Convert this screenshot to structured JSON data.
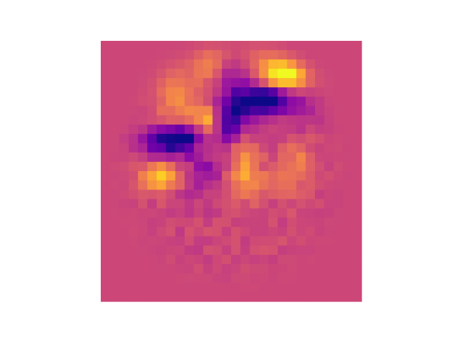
{
  "chart_data": {
    "type": "heatmap",
    "title": "",
    "xlabel": "",
    "ylabel": "",
    "axes_visible": false,
    "colorbar": false,
    "colormap": "plasma",
    "vmin": -1,
    "vmax": 1,
    "rows": 28,
    "cols": 28,
    "background_value": 0,
    "features": [
      {
        "row": 9.1,
        "col": 11.1,
        "sigma_row": 1.4,
        "sigma_col": 1.2,
        "amp": 1.0
      },
      {
        "row": 8.0,
        "col": 10.7,
        "sigma_row": 1.8,
        "sigma_col": 2.3,
        "amp": 0.35
      },
      {
        "row": 3.3,
        "col": 19.4,
        "sigma_row": 1.0,
        "sigma_col": 1.5,
        "amp": 0.9
      },
      {
        "row": 2.3,
        "col": 18.0,
        "sigma_row": 1.8,
        "sigma_col": 3.0,
        "amp": 0.45
      },
      {
        "row": 2.2,
        "col": 11.3,
        "sigma_row": 1.5,
        "sigma_col": 1.4,
        "amp": 0.45
      },
      {
        "row": 5.4,
        "col": 7.5,
        "sigma_row": 2.2,
        "sigma_col": 1.5,
        "amp": 0.35
      },
      {
        "row": 14.1,
        "col": 6.3,
        "sigma_row": 1.2,
        "sigma_col": 1.7,
        "amp": 0.8
      },
      {
        "row": 13.6,
        "col": 14.8,
        "sigma_row": 2.0,
        "sigma_col": 1.2,
        "amp": 0.55
      },
      {
        "row": 11.9,
        "col": 20.7,
        "sigma_row": 2.4,
        "sigma_col": 1.2,
        "amp": 0.35
      },
      {
        "row": 14.8,
        "col": 18.0,
        "sigma_row": 1.0,
        "sigma_col": 1.5,
        "amp": 0.3
      },
      {
        "row": 5.7,
        "col": 17.8,
        "sigma_row": 1.0,
        "sigma_col": 1.6,
        "amp": -1.0
      },
      {
        "row": 6.3,
        "col": 14.8,
        "sigma_row": 1.2,
        "sigma_col": 1.8,
        "amp": -0.8
      },
      {
        "row": 7.8,
        "col": 13.2,
        "sigma_row": 1.2,
        "sigma_col": 1.2,
        "amp": -0.7
      },
      {
        "row": 9.3,
        "col": 12.0,
        "sigma_row": 1.0,
        "sigma_col": 1.6,
        "amp": -0.75
      },
      {
        "row": 9.8,
        "col": 9.0,
        "sigma_row": 1.0,
        "sigma_col": 2.0,
        "amp": -0.85
      },
      {
        "row": 10.5,
        "col": 6.5,
        "sigma_row": 1.2,
        "sigma_col": 2.0,
        "amp": -0.7
      },
      {
        "row": 3.3,
        "col": 13.8,
        "sigma_row": 1.6,
        "sigma_col": 1.8,
        "amp": -0.5
      },
      {
        "row": 12.8,
        "col": 11.0,
        "sigma_row": 1.2,
        "sigma_col": 1.6,
        "amp": -0.3
      },
      {
        "row": 7.5,
        "col": 21.0,
        "sigma_row": 2.0,
        "sigma_col": 1.5,
        "amp": -0.3
      },
      {
        "row": 14.8,
        "col": 9.0,
        "sigma_row": 1.8,
        "sigma_col": 2.0,
        "amp": -0.25
      }
    ]
  }
}
